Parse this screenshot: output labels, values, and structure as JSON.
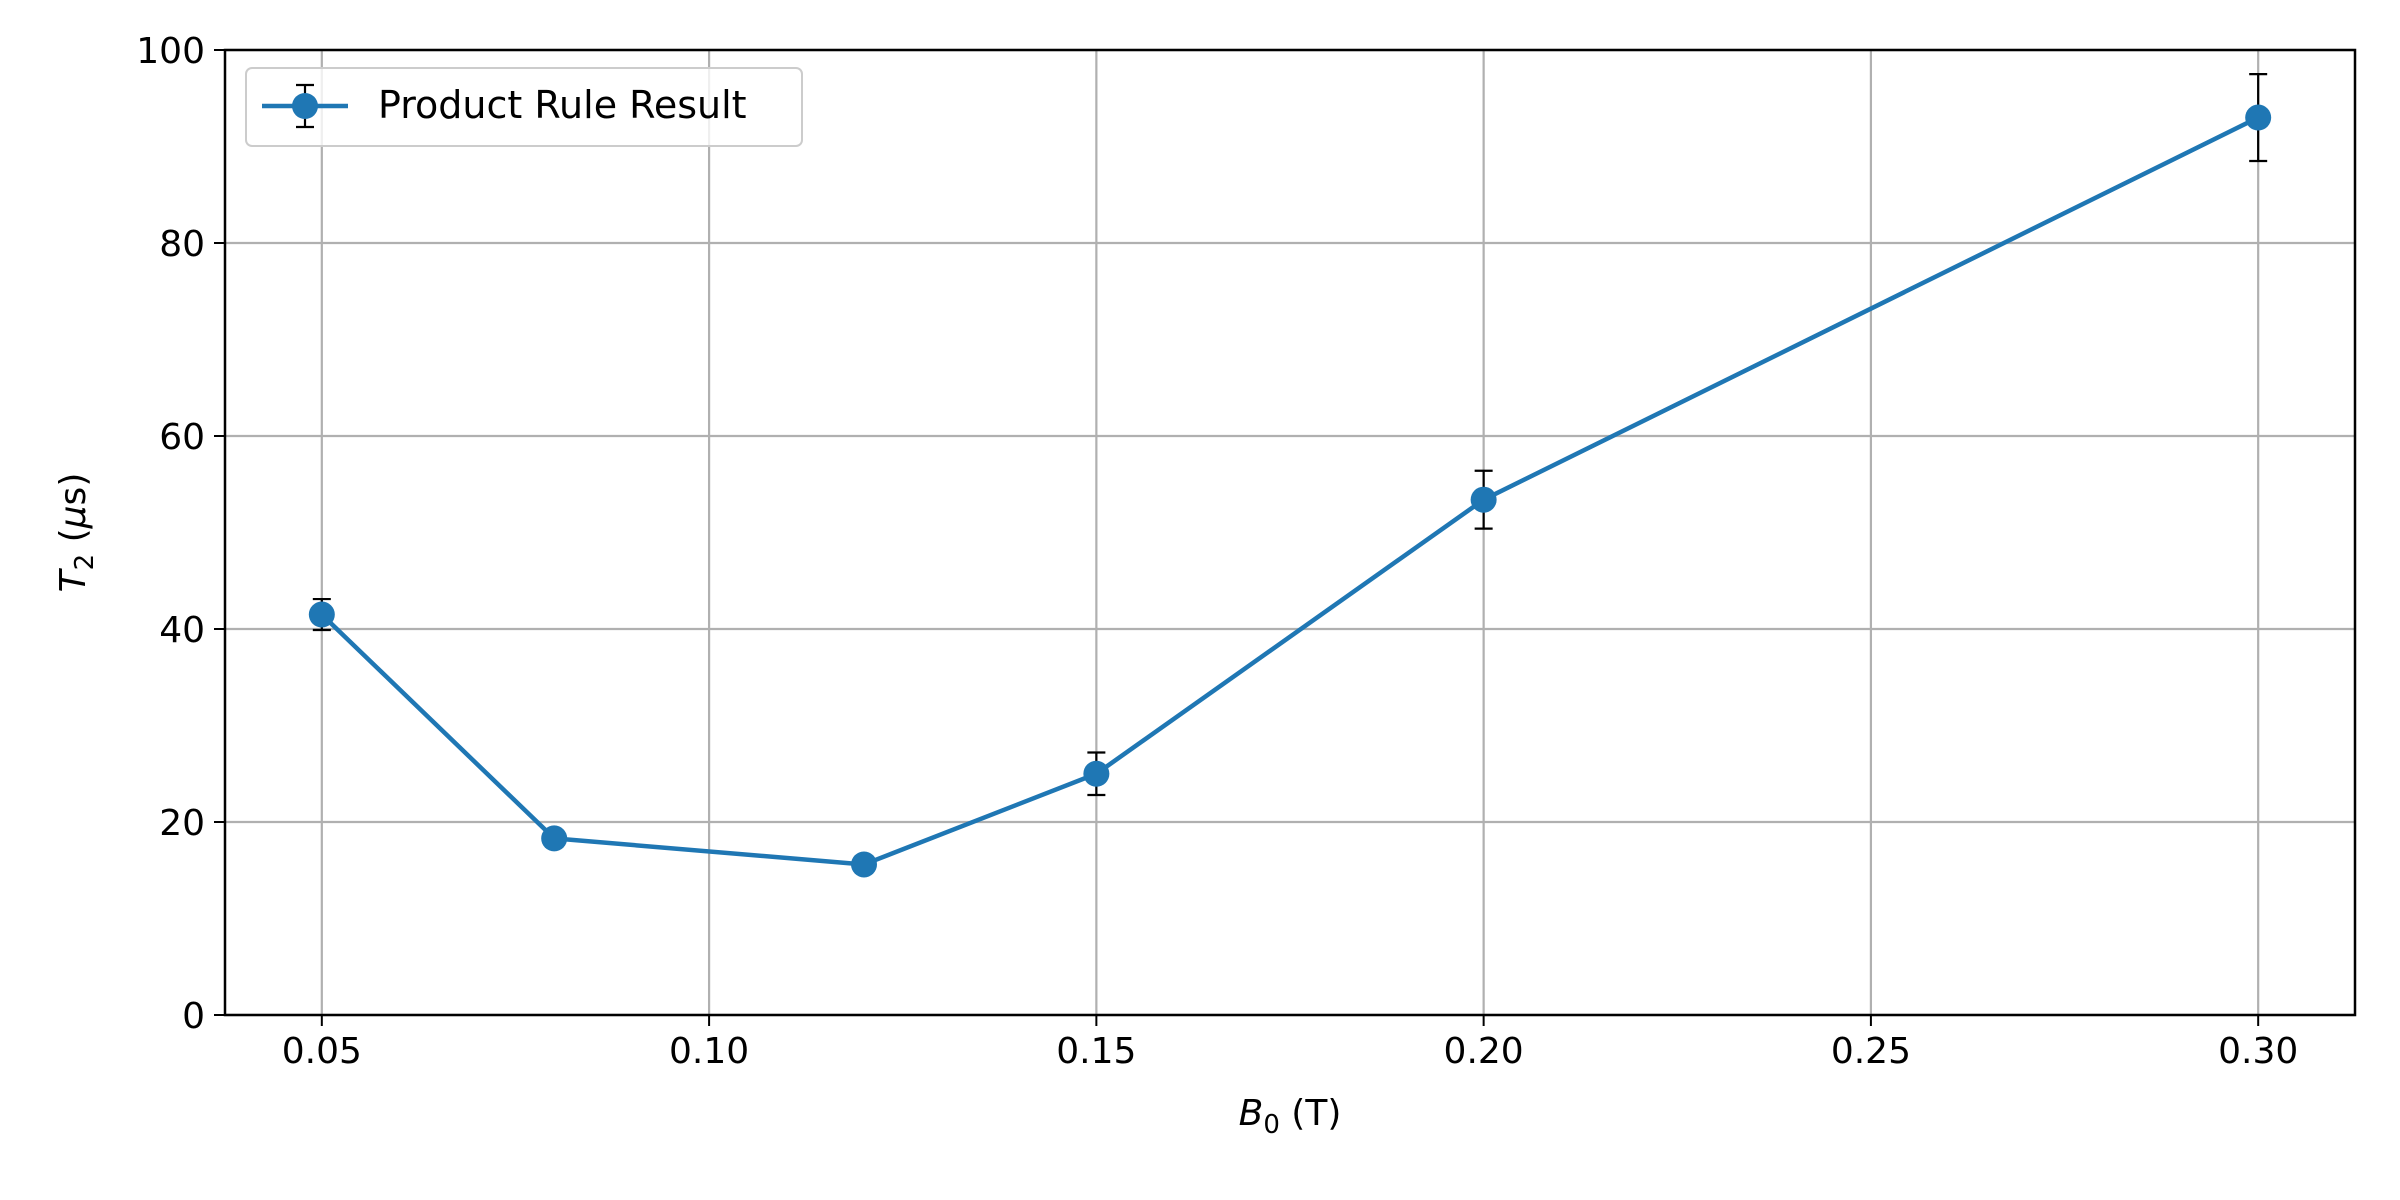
{
  "chart_data": {
    "type": "line",
    "xlabel": {
      "symbol": "B",
      "sub": "0",
      "unit": " (T)"
    },
    "ylabel": {
      "symbol": "T",
      "sub": "2",
      "unit_pre": " (",
      "mu": "μ",
      "unit_post": "s)"
    },
    "x_ticks": [
      "0.05",
      "0.10",
      "0.15",
      "0.20",
      "0.25",
      "0.30"
    ],
    "y_ticks": [
      "0",
      "20",
      "40",
      "60",
      "80",
      "100"
    ],
    "xlim": [
      0.0375,
      0.3125
    ],
    "ylim": [
      0,
      100
    ],
    "grid": true,
    "legend_position": "upper-left",
    "series": [
      {
        "name": "Product Rule Result",
        "color": "#1f77b4",
        "x": [
          0.05,
          0.08,
          0.12,
          0.15,
          0.2,
          0.3
        ],
        "y": [
          41.5,
          18.3,
          15.6,
          25.0,
          53.4,
          93.0
        ],
        "yerr": [
          1.6,
          0.8,
          0.8,
          2.2,
          3.0,
          4.5
        ]
      }
    ]
  }
}
